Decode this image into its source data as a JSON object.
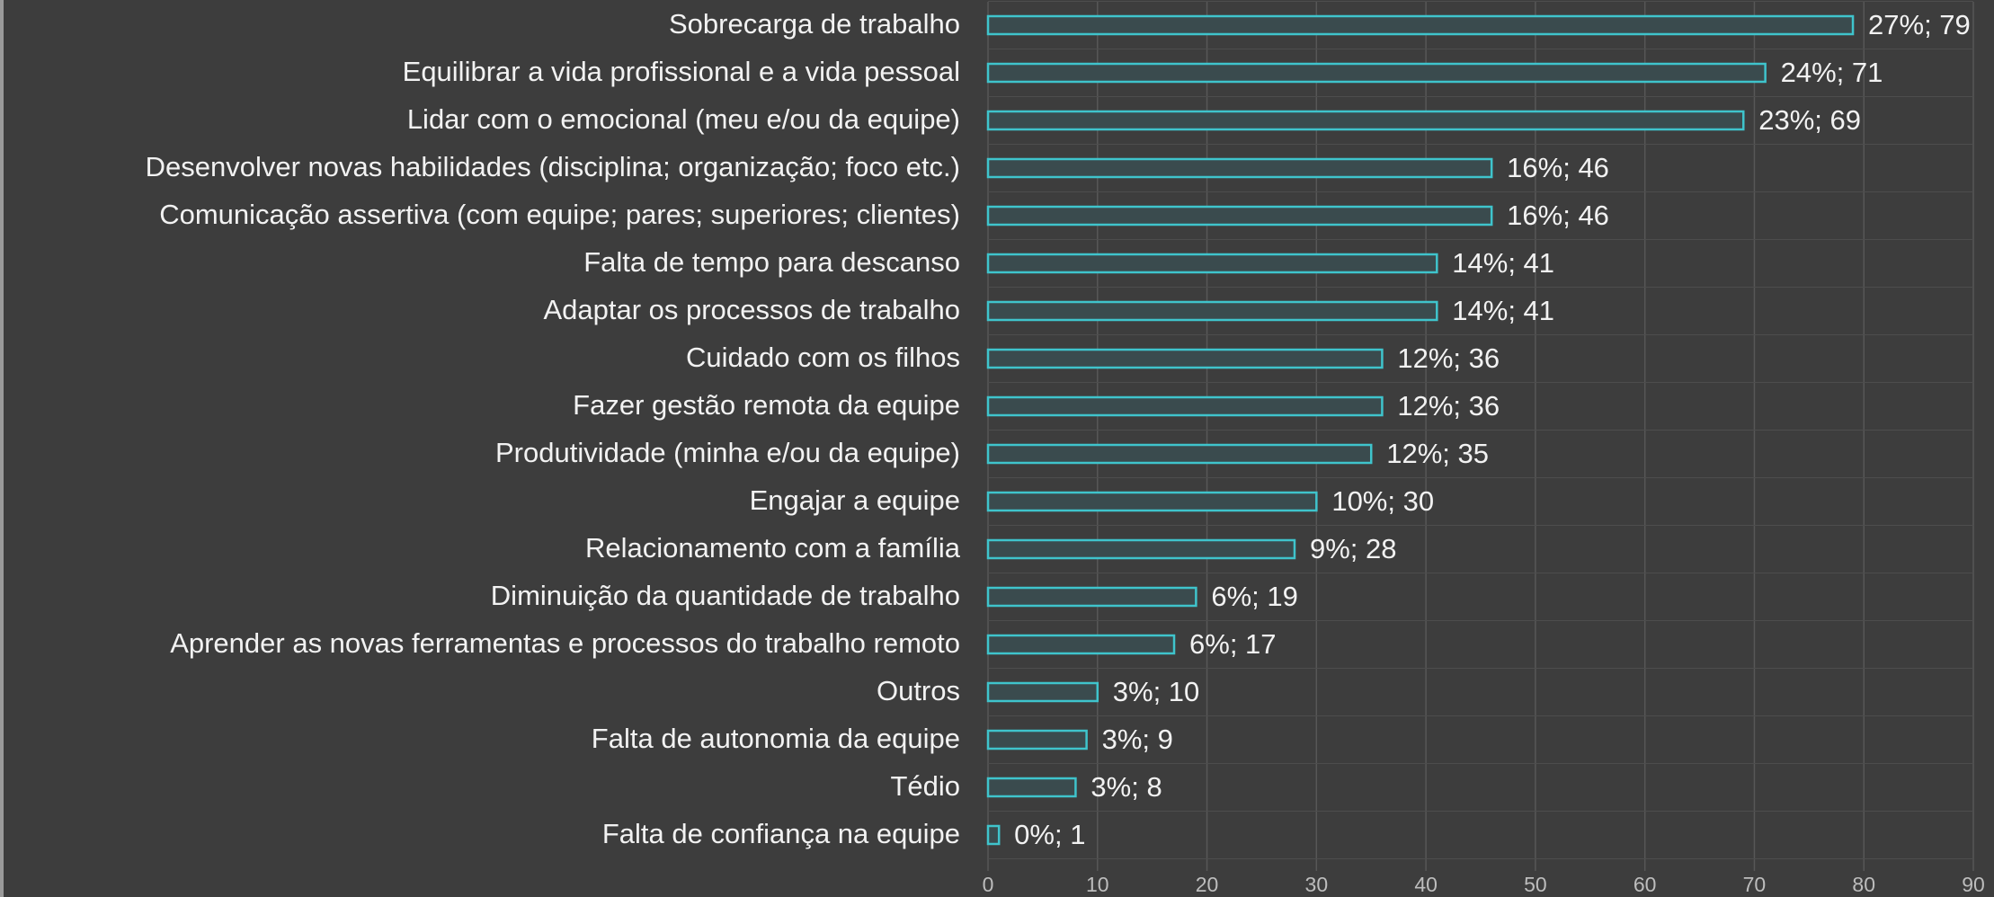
{
  "chart_data": {
    "type": "bar",
    "orientation": "horizontal",
    "categories": [
      "Sobrecarga de trabalho",
      "Equilibrar a vida profissional e a vida pessoal",
      "Lidar com o emocional (meu e/ou da equipe)",
      "Desenvolver novas habilidades (disciplina; organização; foco etc.)",
      "Comunicação assertiva (com equipe; pares; superiores; clientes)",
      "Falta de tempo para descanso",
      "Adaptar os processos de trabalho",
      "Cuidado com os filhos",
      "Fazer gestão remota da equipe",
      "Produtividade (minha e/ou da equipe)",
      "Engajar a equipe",
      "Relacionamento com a família",
      "Diminuição da quantidade de trabalho",
      "Aprender as novas ferramentas e processos do trabalho remoto",
      "Outros",
      "Falta de autonomia da equipe",
      "Tédio",
      "Falta de confiança na equipe"
    ],
    "values": [
      79,
      71,
      69,
      46,
      46,
      41,
      41,
      36,
      36,
      35,
      30,
      28,
      19,
      17,
      10,
      9,
      8,
      1
    ],
    "value_labels": [
      "27%; 79",
      "24%; 71",
      "23%; 69",
      "16%; 46",
      "16%; 46",
      "14%; 41",
      "14%; 41",
      "12%; 36",
      "12%; 36",
      "12%; 35",
      "10%; 30",
      "9%; 28",
      "6%; 19",
      "6%; 17",
      "3%; 10",
      "3%; 9",
      "3%; 8",
      "0%; 1"
    ],
    "color": "#3fc4cc",
    "xlim": [
      0,
      90
    ],
    "xticks": [
      0,
      10,
      20,
      30,
      40,
      50,
      60,
      70,
      80,
      90
    ],
    "grid": true
  }
}
